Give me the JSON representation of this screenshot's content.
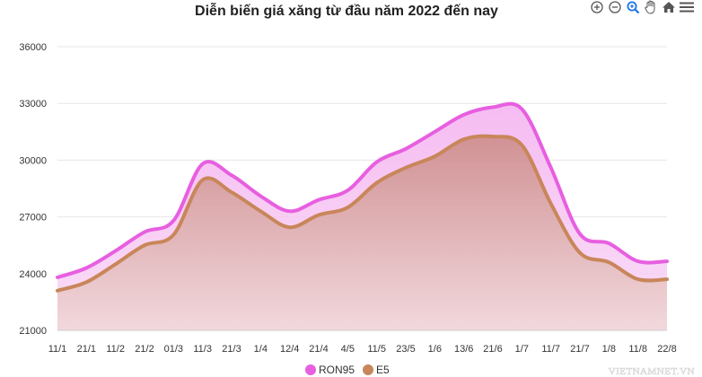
{
  "toolbar": {
    "icons": [
      "zoom-in-icon",
      "zoom-out-icon",
      "zoom-select-icon",
      "pan-hand-icon",
      "home-reset-icon",
      "menu-icon"
    ]
  },
  "watermark": "VIETNAMNET.VN",
  "chart_data": {
    "type": "area",
    "title": "Diễn biến giá xăng từ đầu năm 2022 đến nay",
    "xlabel": "",
    "ylabel": "",
    "ylim": [
      21000,
      36000
    ],
    "yticks": [
      21000,
      24000,
      27000,
      30000,
      33000,
      36000
    ],
    "categories": [
      "11/1",
      "21/1",
      "11/2",
      "21/2",
      "01/3",
      "11/3",
      "21/3",
      "1/4",
      "12/4",
      "21/4",
      "4/5",
      "11/5",
      "23/5",
      "1/6",
      "13/6",
      "21/6",
      "1/7",
      "11/7",
      "21/7",
      "1/8",
      "11/8",
      "22/8"
    ],
    "grid": true,
    "legend_position": "bottom",
    "series": [
      {
        "name": "RON95",
        "color": "#e75fe0",
        "values": [
          23800,
          24300,
          25200,
          26200,
          26800,
          29800,
          29200,
          28100,
          27300,
          27900,
          28400,
          29900,
          30600,
          31500,
          32400,
          32800,
          32700,
          29600,
          26100,
          25600,
          24650,
          24650
        ]
      },
      {
        "name": "E5",
        "color": "#c8865a",
        "values": [
          23100,
          23550,
          24500,
          25500,
          26050,
          28950,
          28300,
          27300,
          26450,
          27100,
          27500,
          28800,
          29600,
          30200,
          31100,
          31250,
          30800,
          27700,
          25100,
          24600,
          23700,
          23700
        ]
      }
    ]
  }
}
